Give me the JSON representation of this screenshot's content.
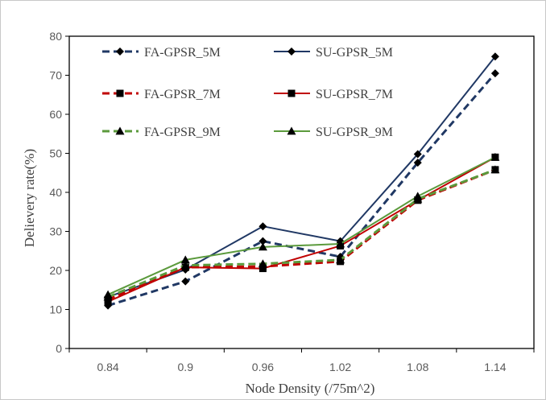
{
  "chart_data": {
    "type": "line",
    "title": "",
    "xlabel": "Node Density (/75m^2)",
    "ylabel": "Delievery rate(%)",
    "categories": [
      "0.84",
      "0.9",
      "0.96",
      "1.02",
      "1.08",
      "1.14"
    ],
    "ylim": [
      0,
      80
    ],
    "yticks": [
      "0",
      "10",
      "20",
      "30",
      "40",
      "50",
      "60",
      "70",
      "80"
    ],
    "grid": false,
    "legend_position": "top-left inside plot, two columns",
    "series": [
      {
        "name": "FA-GPSR_5M",
        "values": [
          11,
          17.2,
          27.5,
          23.5,
          47.6,
          70.5
        ],
        "color": "#203864",
        "dash": true,
        "marker": "diamond"
      },
      {
        "name": "SU-GPSR_5M",
        "values": [
          13.2,
          20.2,
          31.3,
          27.5,
          49.8,
          74.8
        ],
        "color": "#203864",
        "dash": false,
        "marker": "diamond"
      },
      {
        "name": "FA-GPSR_7M",
        "values": [
          12.5,
          20.8,
          21,
          22.3,
          38,
          45.8
        ],
        "color": "#c00000",
        "dash": true,
        "marker": "square"
      },
      {
        "name": "SU-GPSR_7M",
        "values": [
          12,
          20.8,
          20.5,
          26.3,
          38,
          49
        ],
        "color": "#c00000",
        "dash": false,
        "marker": "square"
      },
      {
        "name": "FA-GPSR_9M",
        "values": [
          13.2,
          21.3,
          21.7,
          22.7,
          38.3,
          45.8
        ],
        "color": "#5b9a3c",
        "dash": true,
        "marker": "triangle"
      },
      {
        "name": "SU-GPSR_9M",
        "values": [
          13.8,
          22.7,
          26,
          26.8,
          39,
          49
        ],
        "color": "#5b9a3c",
        "dash": false,
        "marker": "triangle"
      }
    ]
  }
}
